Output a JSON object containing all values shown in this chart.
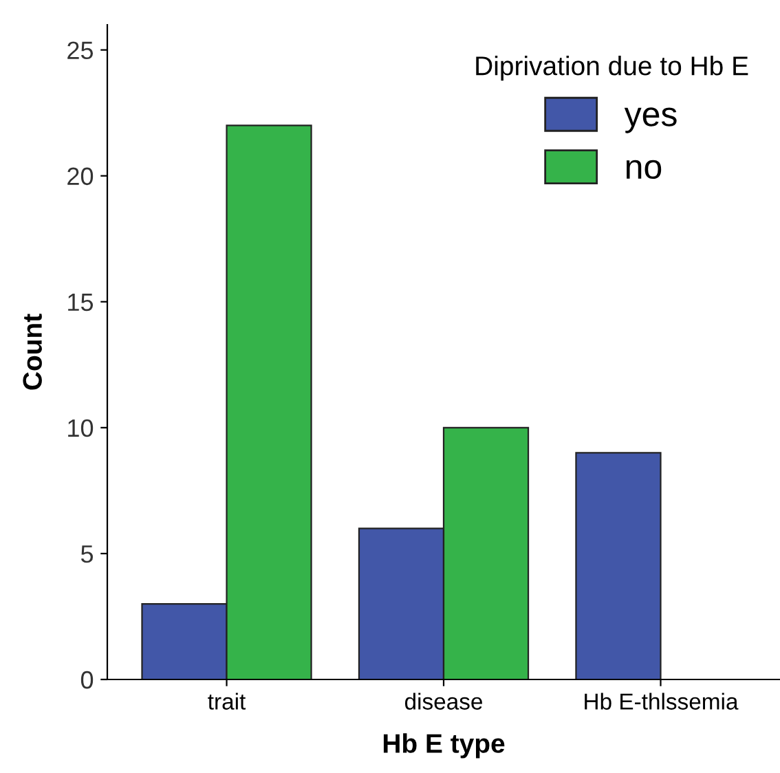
{
  "chart_data": {
    "type": "bar",
    "xlabel": "Hb E type",
    "ylabel": "Count",
    "legend_title": "Diprivation due to Hb E",
    "categories": [
      "trait",
      "disease",
      "Hb E-thlssemia"
    ],
    "series": [
      {
        "name": "yes",
        "color": "#4257a8",
        "values": [
          3,
          6,
          9
        ]
      },
      {
        "name": "no",
        "color": "#35b34a",
        "values": [
          22,
          10,
          null
        ]
      }
    ],
    "ylim": [
      0,
      26
    ],
    "yticks": [
      0,
      5,
      10,
      15,
      20,
      25
    ],
    "grid": false,
    "legend": "top right"
  }
}
